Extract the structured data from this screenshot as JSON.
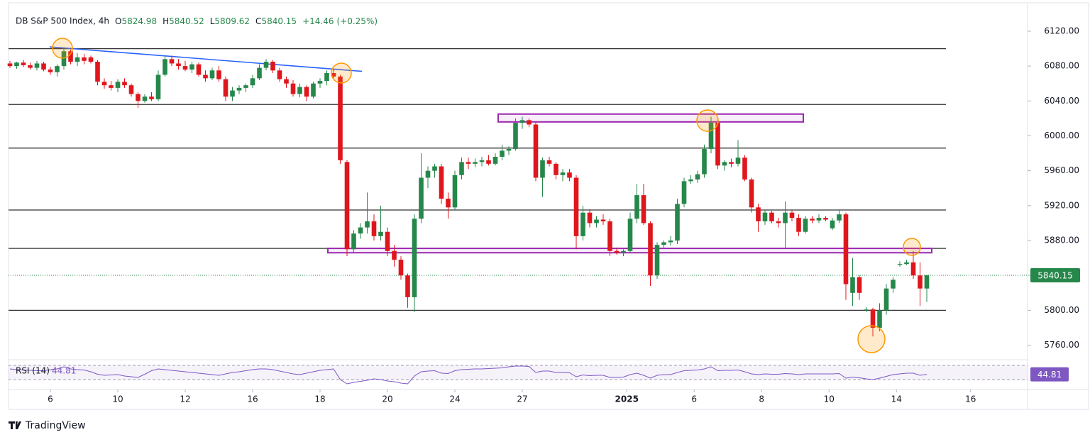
{
  "chart_data": {
    "type": "candlestick",
    "title": "DB S&P 500 Index, 4h",
    "ohlc_labels": [
      "O",
      "H",
      "L",
      "C"
    ],
    "change": "+14.46",
    "change_pct": "(+0.25%)",
    "brand": "TradingView",
    "up_color": "#26874a",
    "down_color": "#e0161d",
    "ohlc": [
      [
        6083,
        6086,
        6078,
        6080
      ],
      [
        6080,
        6085,
        6077,
        6084
      ],
      [
        6084,
        6087,
        6079,
        6081
      ],
      [
        6081,
        6084,
        6076,
        6078
      ],
      [
        6078,
        6086,
        6075,
        6083
      ],
      [
        6083,
        6085,
        6074,
        6076
      ],
      [
        6076,
        6079,
        6070,
        6073
      ],
      [
        6073,
        6082,
        6068,
        6080
      ],
      [
        6080,
        6101,
        6076,
        6097
      ],
      [
        6097,
        6099,
        6082,
        6085
      ],
      [
        6085,
        6095,
        6080,
        6090
      ],
      [
        6090,
        6094,
        6082,
        6086
      ],
      [
        6090,
        6092,
        6083,
        6085
      ],
      [
        6085,
        6087,
        6058,
        6062
      ],
      [
        6062,
        6066,
        6054,
        6058
      ],
      [
        6058,
        6063,
        6052,
        6055
      ],
      [
        6055,
        6065,
        6050,
        6062
      ],
      [
        6062,
        6066,
        6055,
        6058
      ],
      [
        6058,
        6060,
        6045,
        6048
      ],
      [
        6048,
        6050,
        6032,
        6040
      ],
      [
        6040,
        6048,
        6038,
        6045
      ],
      [
        6045,
        6050,
        6040,
        6042
      ],
      [
        6042,
        6075,
        6040,
        6070
      ],
      [
        6070,
        6092,
        6068,
        6088
      ],
      [
        6088,
        6092,
        6080,
        6083
      ],
      [
        6083,
        6088,
        6076,
        6080
      ],
      [
        6080,
        6086,
        6074,
        6076
      ],
      [
        6076,
        6085,
        6072,
        6082
      ],
      [
        6082,
        6084,
        6068,
        6070
      ],
      [
        6070,
        6075,
        6062,
        6066
      ],
      [
        6066,
        6078,
        6064,
        6075
      ],
      [
        6075,
        6080,
        6062,
        6065
      ],
      [
        6065,
        6068,
        6040,
        6045
      ],
      [
        6045,
        6056,
        6040,
        6052
      ],
      [
        6052,
        6058,
        6048,
        6055
      ],
      [
        6055,
        6060,
        6050,
        6058
      ],
      [
        6058,
        6070,
        6055,
        6066
      ],
      [
        6066,
        6082,
        6064,
        6078
      ],
      [
        6078,
        6088,
        6075,
        6085
      ],
      [
        6085,
        6087,
        6072,
        6075
      ],
      [
        6075,
        6078,
        6062,
        6065
      ],
      [
        6065,
        6068,
        6055,
        6060
      ],
      [
        6060,
        6064,
        6045,
        6048
      ],
      [
        6048,
        6060,
        6044,
        6056
      ],
      [
        6056,
        6058,
        6040,
        6045
      ],
      [
        6045,
        6062,
        6043,
        6060
      ],
      [
        6060,
        6066,
        6055,
        6063
      ],
      [
        6063,
        6075,
        6058,
        6072
      ],
      [
        6072,
        6076,
        6066,
        6068
      ],
      [
        6068,
        6070,
        5968,
        5972
      ],
      [
        5970,
        5972,
        5862,
        5870
      ],
      [
        5870,
        5892,
        5866,
        5888
      ],
      [
        5888,
        5900,
        5882,
        5895
      ],
      [
        5895,
        5935,
        5888,
        5902
      ],
      [
        5902,
        5910,
        5880,
        5885
      ],
      [
        5885,
        5920,
        5880,
        5890
      ],
      [
        5890,
        5895,
        5862,
        5868
      ],
      [
        5868,
        5875,
        5850,
        5858
      ],
      [
        5858,
        5862,
        5835,
        5840
      ],
      [
        5840,
        5842,
        5803,
        5815
      ],
      [
        5815,
        5910,
        5798,
        5905
      ],
      [
        5905,
        5980,
        5900,
        5952
      ],
      [
        5952,
        5965,
        5940,
        5960
      ],
      [
        5960,
        5968,
        5952,
        5965
      ],
      [
        5965,
        5968,
        5922,
        5928
      ],
      [
        5928,
        5935,
        5905,
        5918
      ],
      [
        5918,
        5960,
        5915,
        5955
      ],
      [
        5955,
        5975,
        5950,
        5970
      ],
      [
        5970,
        5975,
        5962,
        5968
      ],
      [
        5968,
        5974,
        5964,
        5970
      ],
      [
        5970,
        5976,
        5965,
        5972
      ],
      [
        5972,
        5978,
        5966,
        5968
      ],
      [
        5968,
        5980,
        5966,
        5976
      ],
      [
        5976,
        5990,
        5972,
        5983
      ],
      [
        5983,
        5988,
        5978,
        5985
      ],
      [
        5985,
        6020,
        5983,
        6015
      ],
      [
        6015,
        6022,
        6008,
        6018
      ],
      [
        6018,
        6020,
        6010,
        6013
      ],
      [
        6013,
        6016,
        5948,
        5952
      ],
      [
        5952,
        5975,
        5930,
        5972
      ],
      [
        5972,
        5976,
        5965,
        5968
      ],
      [
        5968,
        5970,
        5950,
        5955
      ],
      [
        5955,
        5962,
        5948,
        5958
      ],
      [
        5958,
        5962,
        5948,
        5952
      ],
      [
        5952,
        5955,
        5870,
        5885
      ],
      [
        5885,
        5920,
        5880,
        5912
      ],
      [
        5912,
        5916,
        5895,
        5900
      ],
      [
        5900,
        5908,
        5895,
        5904
      ],
      [
        5904,
        5910,
        5898,
        5902
      ],
      [
        5902,
        5905,
        5862,
        5868
      ],
      [
        5868,
        5872,
        5864,
        5866
      ],
      [
        5866,
        5870,
        5862,
        5868
      ],
      [
        5868,
        5912,
        5866,
        5905
      ],
      [
        5905,
        5945,
        5900,
        5932
      ],
      [
        5932,
        5945,
        5898,
        5900
      ],
      [
        5900,
        5902,
        5828,
        5840
      ],
      [
        5840,
        5878,
        5836,
        5875
      ],
      [
        5875,
        5880,
        5872,
        5878
      ],
      [
        5878,
        5885,
        5874,
        5880
      ],
      [
        5880,
        5928,
        5876,
        5922
      ],
      [
        5922,
        5952,
        5918,
        5948
      ],
      [
        5948,
        5955,
        5945,
        5950
      ],
      [
        5950,
        5960,
        5946,
        5956
      ],
      [
        5956,
        5990,
        5952,
        5985
      ],
      [
        5985,
        6022,
        5980,
        6015
      ],
      [
        6015,
        6018,
        5962,
        5966
      ],
      [
        5966,
        5972,
        5960,
        5970
      ],
      [
        5970,
        5974,
        5964,
        5968
      ],
      [
        5968,
        5995,
        5965,
        5975
      ],
      [
        5975,
        5978,
        5948,
        5950
      ],
      [
        5950,
        5952,
        5912,
        5918
      ],
      [
        5918,
        5922,
        5890,
        5902
      ],
      [
        5902,
        5915,
        5898,
        5912
      ],
      [
        5912,
        5914,
        5900,
        5902
      ],
      [
        5902,
        5906,
        5895,
        5900
      ],
      [
        5900,
        5925,
        5872,
        5912
      ],
      [
        5912,
        5915,
        5902,
        5906
      ],
      [
        5906,
        5910,
        5885,
        5890
      ],
      [
        5890,
        5908,
        5888,
        5905
      ],
      [
        5905,
        5908,
        5900,
        5903
      ],
      [
        5903,
        5910,
        5900,
        5906
      ],
      [
        5906,
        5908,
        5902,
        5904
      ],
      [
        5894,
        5906,
        5892,
        5903
      ],
      [
        5903,
        5915,
        5900,
        5910
      ],
      [
        5910,
        5912,
        5812,
        5830
      ],
      [
        5820,
        5860,
        5805,
        5838
      ],
      [
        5838,
        5840,
        5812,
        5820
      ],
      [
        5800,
        5804,
        5798,
        5801
      ],
      [
        5801,
        5803,
        5770,
        5780
      ],
      [
        5780,
        5808,
        5776,
        5800
      ],
      [
        5800,
        5830,
        5795,
        5825
      ],
      [
        5825,
        5838,
        5820,
        5835
      ],
      [
        5852,
        5856,
        5850,
        5853
      ],
      [
        5853,
        5858,
        5852,
        5855
      ],
      [
        5855,
        5868,
        5836,
        5840
      ],
      [
        5840,
        5855,
        5805,
        5825
      ],
      [
        5824.98,
        5840.52,
        5809.62,
        5840.15
      ]
    ],
    "ylim": [
      5745,
      6146
    ],
    "yticks": [
      {
        "value": 5760,
        "label": "5760.00"
      },
      {
        "value": 5800,
        "label": "5800.00"
      },
      {
        "value": 5840,
        "label": "5840.00"
      },
      {
        "value": 5880,
        "label": "5880.00"
      },
      {
        "value": 5920,
        "label": "5920.00"
      },
      {
        "value": 5960,
        "label": "5960.00"
      },
      {
        "value": 6000,
        "label": "6000.00"
      },
      {
        "value": 6040,
        "label": "6040.00"
      },
      {
        "value": 6080,
        "label": "6080.00"
      },
      {
        "value": 6120,
        "label": "6120.00"
      }
    ],
    "xticks": [
      {
        "value": 6,
        "label": "6"
      },
      {
        "value": 16,
        "label": "10"
      },
      {
        "value": 26,
        "label": "12"
      },
      {
        "value": 36,
        "label": "16"
      },
      {
        "value": 46,
        "label": "18"
      },
      {
        "value": 56,
        "label": "20"
      },
      {
        "value": 66,
        "label": "24"
      },
      {
        "value": 76,
        "label": "27"
      },
      {
        "value": 91.5,
        "label": "2025"
      },
      {
        "value": 101.5,
        "label": "6"
      },
      {
        "value": 111.5,
        "label": "8"
      },
      {
        "value": 121.5,
        "label": "10"
      },
      {
        "value": 131.5,
        "label": "14"
      },
      {
        "value": 142.5,
        "label": "16"
      }
    ],
    "grid": false,
    "levels": [
      6100,
      6036,
      5986,
      5915,
      5871,
      5800
    ],
    "zones": [
      [
        6016,
        6025
      ],
      [
        5866,
        5871
      ]
    ],
    "trendline": [
      6102,
      6074
    ],
    "rsi_label": "RSI (14)",
    "rsi_color": "#7e57c2",
    "rsi": [
      60,
      58,
      57,
      56,
      55,
      55,
      58,
      60,
      66,
      60,
      58,
      57,
      52,
      45,
      42,
      43,
      44,
      40,
      38,
      36,
      45,
      55,
      60,
      58,
      56,
      54,
      52,
      50,
      48,
      46,
      44,
      42,
      46,
      50,
      52,
      55,
      58,
      60,
      60,
      58,
      54,
      50,
      46,
      44,
      48,
      52,
      56,
      58,
      60,
      30,
      18,
      22,
      25,
      28,
      32,
      30,
      26,
      24,
      20,
      18,
      40,
      52,
      54,
      55,
      48,
      47,
      55,
      58,
      59,
      60,
      60,
      61,
      62,
      63,
      66,
      68,
      68,
      67,
      50,
      54,
      54,
      50,
      50,
      49,
      38,
      43,
      41,
      42,
      42,
      36,
      36,
      37,
      44,
      48,
      42,
      34,
      42,
      44,
      44,
      50,
      55,
      56,
      57,
      60,
      66,
      55,
      56,
      56,
      57,
      52,
      46,
      44,
      46,
      45,
      45,
      47,
      46,
      44,
      46,
      46,
      46,
      46,
      46,
      47,
      34,
      37,
      35,
      32,
      30,
      34,
      39,
      44,
      46,
      48,
      48,
      42,
      44.81
    ]
  }
}
